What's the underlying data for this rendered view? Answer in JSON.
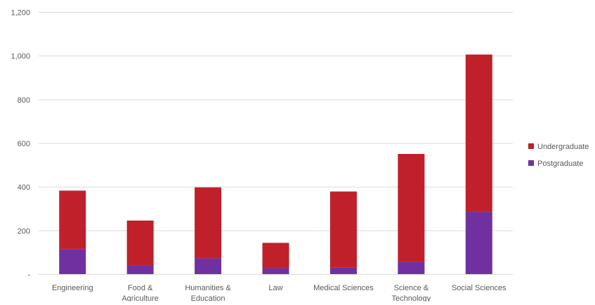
{
  "chart_data": {
    "type": "bar",
    "stacked": true,
    "title": "",
    "xlabel": "",
    "ylabel": "",
    "categories": [
      [
        "Engineering"
      ],
      [
        "Food &",
        "Agriculture"
      ],
      [
        "Humanities &",
        "Education"
      ],
      [
        "Law"
      ],
      [
        "Medical Sciences"
      ],
      [
        "Science &",
        "Technology"
      ],
      [
        "Social Sciences"
      ]
    ],
    "series": [
      {
        "name": "Postgraduate",
        "color": "#7030a0",
        "values": [
          115,
          40,
          72,
          27,
          30,
          55,
          285
        ]
      },
      {
        "name": "Undergraduate",
        "color": "#c0202a",
        "values": [
          267,
          205,
          325,
          116,
          348,
          495,
          720
        ]
      }
    ],
    "ylim": [
      0,
      1200
    ],
    "yticks": [
      0,
      200,
      400,
      600,
      800,
      1000,
      1200
    ],
    "ytick_labels": [
      "-",
      "200",
      "400",
      "600",
      "800",
      "1,000",
      "1,200"
    ],
    "grid": true,
    "legend": {
      "position": "right",
      "order": [
        "Undergraduate",
        "Postgraduate"
      ]
    }
  }
}
